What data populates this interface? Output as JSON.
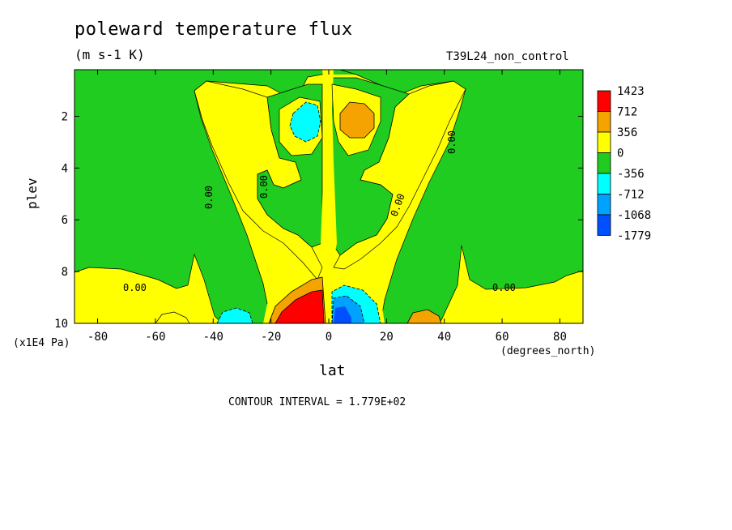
{
  "chart_data": {
    "type": "heatmap",
    "title": "poleward temperature flux",
    "units": "(m s-1 K)",
    "run_label": "T39L24_non_control",
    "xlabel": "lat",
    "x_unit": "(degrees_north)",
    "ylabel": "plev",
    "y_scale_label": "(x1E4 Pa)",
    "contour_interval_text": "CONTOUR INTERVAL = 1.779E+02",
    "x_ticks": [
      "-80",
      "-60",
      "-40",
      "-20",
      "0",
      "20",
      "40",
      "60",
      "80"
    ],
    "y_ticks": [
      "2",
      "4",
      "6",
      "8",
      "10"
    ],
    "x_range": [
      -88,
      88
    ],
    "y_range": [
      0.2,
      10
    ],
    "y_inverted": true,
    "contour_labels": [
      "0.00",
      "0.00",
      "0.00",
      "0.00",
      "0.00",
      "0.00"
    ],
    "colorbar": {
      "labels": [
        "1423",
        "712",
        "356",
        "0",
        "-356",
        "-712",
        "-1068",
        "-1779"
      ],
      "colors": [
        "#ff0000",
        "#f5a300",
        "#ffff00",
        "#1fcc1f",
        "#00ffff",
        "#00a2ff",
        "#0050ff"
      ]
    }
  }
}
